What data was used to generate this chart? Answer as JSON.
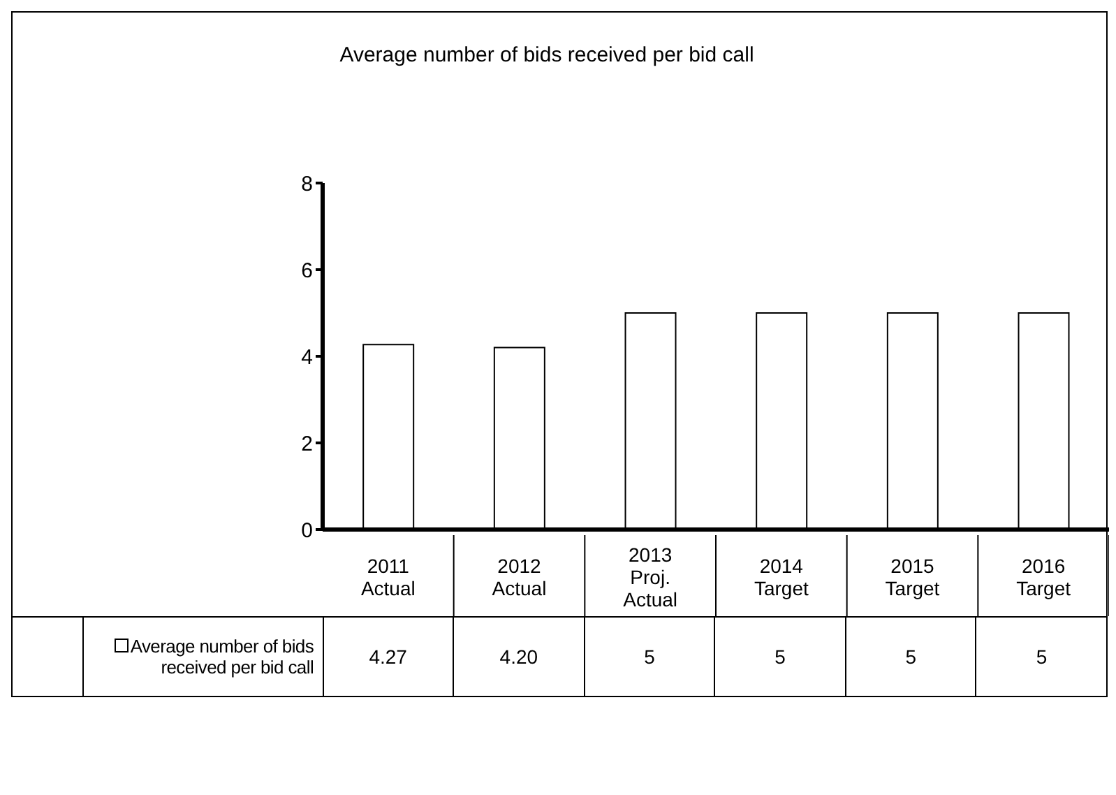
{
  "chart_data": {
    "type": "bar",
    "title": "Average number of bids received per bid call",
    "categories": [
      "2011 Actual",
      "2012 Actual",
      "2013 Proj. Actual",
      "2014 Target",
      "2015 Target",
      "2016 Target"
    ],
    "series": [
      {
        "name": "Average number of bids received per bid call",
        "color": "#ffffff",
        "values": [
          4.27,
          4.2,
          5,
          5,
          5,
          5
        ],
        "value_labels": [
          "4.27",
          "4.20",
          "5",
          "5",
          "5",
          "5"
        ]
      }
    ],
    "ylim": [
      0,
      8
    ],
    "yticks": [
      0,
      2,
      4,
      6,
      8
    ],
    "legend": "bottom"
  }
}
